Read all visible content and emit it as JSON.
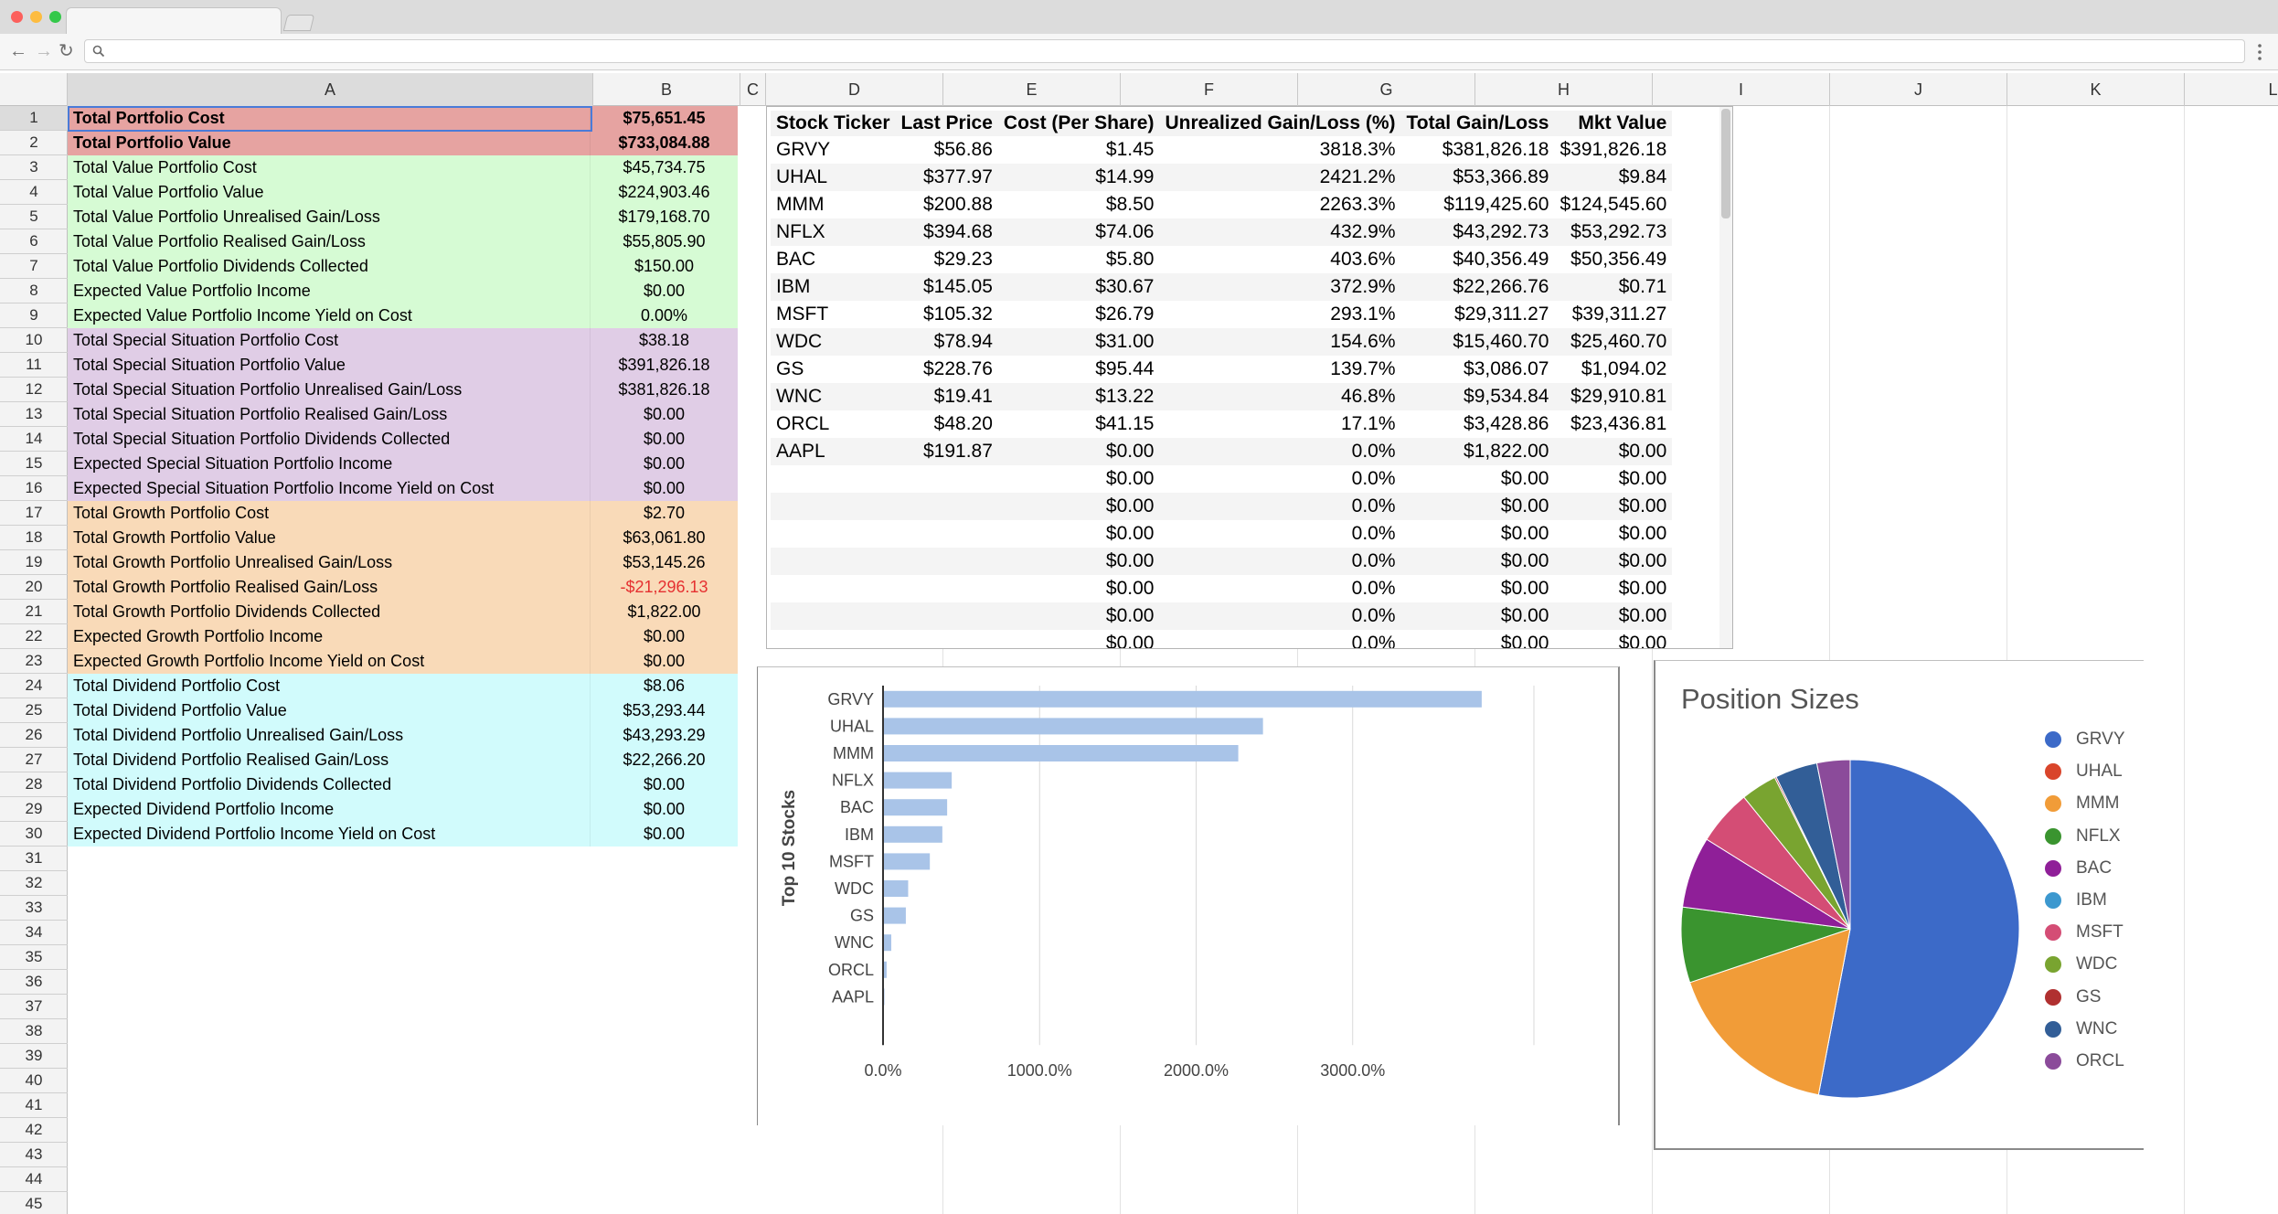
{
  "browser": {
    "nav": {
      "back": "←",
      "forward": "→",
      "reload": "↻"
    },
    "omnibox_value": "",
    "icons": [
      "search-icon",
      "kebab-menu-icon"
    ],
    "traffic_colors": [
      "#fc605c",
      "#fdbc40",
      "#34c84a"
    ]
  },
  "sheet": {
    "columns": [
      "A",
      "B",
      "C",
      "D",
      "E",
      "F",
      "G",
      "H",
      "I",
      "J",
      "K",
      "L"
    ],
    "row_numbers": [
      "1",
      "2",
      "3",
      "4",
      "5",
      "6",
      "7",
      "8",
      "9",
      "10",
      "11",
      "12",
      "13",
      "14",
      "15",
      "16",
      "17",
      "18",
      "19",
      "20",
      "21",
      "22",
      "23",
      "24",
      "25",
      "26",
      "27",
      "28",
      "29",
      "30",
      "31",
      "32",
      "33",
      "34",
      "35",
      "36",
      "37",
      "38",
      "39",
      "40",
      "41",
      "42",
      "43",
      "44",
      "45"
    ],
    "rows": [
      {
        "label": "Total Portfolio Cost",
        "value": "$75,651.45",
        "group": "red",
        "bold": true
      },
      {
        "label": "Total Portfolio Value",
        "value": "$733,084.88",
        "group": "red",
        "bold": true
      },
      {
        "label": "Total Value Portfolio Cost",
        "value": "$45,734.75",
        "group": "green"
      },
      {
        "label": "Total Value Portfolio Value",
        "value": "$224,903.46",
        "group": "green"
      },
      {
        "label": "Total Value Portfolio Unrealised Gain/Loss",
        "value": "$179,168.70",
        "group": "green"
      },
      {
        "label": "Total Value Portfolio Realised Gain/Loss",
        "value": "$55,805.90",
        "group": "green"
      },
      {
        "label": "Total Value Portfolio Dividends Collected",
        "value": "$150.00",
        "group": "green"
      },
      {
        "label": "Expected Value Portfolio Income",
        "value": "$0.00",
        "group": "green"
      },
      {
        "label": "Expected Value Portfolio Income Yield on Cost",
        "value": "0.00%",
        "group": "green"
      },
      {
        "label": "Total Special Situation Portfolio Cost",
        "value": "$38.18",
        "group": "purple"
      },
      {
        "label": "Total Special Situation Portfolio Value",
        "value": "$391,826.18",
        "group": "purple"
      },
      {
        "label": "Total Special Situation Portfolio Unrealised Gain/Loss",
        "value": "$381,826.18",
        "group": "purple"
      },
      {
        "label": "Total Special Situation Portfolio Realised Gain/Loss",
        "value": "$0.00",
        "group": "purple"
      },
      {
        "label": "Total Special Situation Portfolio Dividends Collected",
        "value": "$0.00",
        "group": "purple"
      },
      {
        "label": "Expected Special Situation Portfolio Income",
        "value": "$0.00",
        "group": "purple"
      },
      {
        "label": "Expected Special Situation Portfolio Income Yield on Cost",
        "value": "$0.00",
        "group": "purple"
      },
      {
        "label": "Total Growth Portfolio Cost",
        "value": "$2.70",
        "group": "orange"
      },
      {
        "label": "Total Growth Portfolio Value",
        "value": "$63,061.80",
        "group": "orange"
      },
      {
        "label": "Total Growth Portfolio Unrealised Gain/Loss",
        "value": "$53,145.26",
        "group": "orange"
      },
      {
        "label": "Total Growth Portfolio Realised Gain/Loss",
        "value": "-$21,296.13",
        "group": "orange",
        "negative": true
      },
      {
        "label": "Total Growth Portfolio Dividends Collected",
        "value": "$1,822.00",
        "group": "orange"
      },
      {
        "label": "Expected Growth Portfolio Income",
        "value": "$0.00",
        "group": "orange"
      },
      {
        "label": "Expected Growth Portfolio Income Yield on Cost",
        "value": "$0.00",
        "group": "orange"
      },
      {
        "label": "Total Dividend Portfolio Cost",
        "value": "$8.06",
        "group": "cyan"
      },
      {
        "label": "Total Dividend Portfolio Value",
        "value": "$53,293.44",
        "group": "cyan"
      },
      {
        "label": "Total Dividend Portfolio Unrealised Gain/Loss",
        "value": "$43,293.29",
        "group": "cyan"
      },
      {
        "label": "Total Dividend Portfolio Realised Gain/Loss",
        "value": "$22,266.20",
        "group": "cyan"
      },
      {
        "label": "Total Dividend Portfolio Dividends Collected",
        "value": "$0.00",
        "group": "cyan"
      },
      {
        "label": "Expected Dividend Portfolio Income",
        "value": "$0.00",
        "group": "cyan"
      },
      {
        "label": "Expected Dividend Portfolio Income Yield on Cost",
        "value": "$0.00",
        "group": "cyan"
      }
    ],
    "group_colors": {
      "red": "#e6a3a1",
      "green": "#d6fbd4",
      "purple": "#e0cde6",
      "orange": "#f9dab8",
      "cyan": "#d1fbfc"
    }
  },
  "stock_table": {
    "headers": [
      "Stock Ticker",
      "Last Price",
      "Cost (Per Share)",
      "Unrealized Gain/Loss (%)",
      "Total Gain/Loss",
      "Mkt Value"
    ],
    "rows": [
      [
        "GRVY",
        "$56.86",
        "$1.45",
        "3818.3%",
        "$381,826.18",
        "$391,826.18"
      ],
      [
        "UHAL",
        "$377.97",
        "$14.99",
        "2421.2%",
        "$53,366.89",
        "$9.84"
      ],
      [
        "MMM",
        "$200.88",
        "$8.50",
        "2263.3%",
        "$119,425.60",
        "$124,545.60"
      ],
      [
        "NFLX",
        "$394.68",
        "$74.06",
        "432.9%",
        "$43,292.73",
        "$53,292.73"
      ],
      [
        "BAC",
        "$29.23",
        "$5.80",
        "403.6%",
        "$40,356.49",
        "$50,356.49"
      ],
      [
        "IBM",
        "$145.05",
        "$30.67",
        "372.9%",
        "$22,266.76",
        "$0.71"
      ],
      [
        "MSFT",
        "$105.32",
        "$26.79",
        "293.1%",
        "$29,311.27",
        "$39,311.27"
      ],
      [
        "WDC",
        "$78.94",
        "$31.00",
        "154.6%",
        "$15,460.70",
        "$25,460.70"
      ],
      [
        "GS",
        "$228.76",
        "$95.44",
        "139.7%",
        "$3,086.07",
        "$1,094.02"
      ],
      [
        "WNC",
        "$19.41",
        "$13.22",
        "46.8%",
        "$9,534.84",
        "$29,910.81"
      ],
      [
        "ORCL",
        "$48.20",
        "$41.15",
        "17.1%",
        "$3,428.86",
        "$23,436.81"
      ],
      [
        "AAPL",
        "$191.87",
        "$0.00",
        "0.0%",
        "$1,822.00",
        "$0.00"
      ],
      [
        "",
        "",
        "$0.00",
        "0.0%",
        "$0.00",
        "$0.00"
      ],
      [
        "",
        "",
        "$0.00",
        "0.0%",
        "$0.00",
        "$0.00"
      ],
      [
        "",
        "",
        "$0.00",
        "0.0%",
        "$0.00",
        "$0.00"
      ],
      [
        "",
        "",
        "$0.00",
        "0.0%",
        "$0.00",
        "$0.00"
      ],
      [
        "",
        "",
        "$0.00",
        "0.0%",
        "$0.00",
        "$0.00"
      ],
      [
        "",
        "",
        "$0.00",
        "0.0%",
        "$0.00",
        "$0.00"
      ],
      [
        "",
        "",
        "$0.00",
        "0.0%",
        "$0.00",
        "$0.00"
      ]
    ]
  },
  "chart_data": [
    {
      "type": "bar",
      "orientation": "horizontal",
      "categories": [
        "GRVY",
        "UHAL",
        "MMM",
        "NFLX",
        "BAC",
        "IBM",
        "MSFT",
        "WDC",
        "GS",
        "WNC",
        "ORCL",
        "AAPL"
      ],
      "values": [
        3818.3,
        2421.2,
        2263.3,
        432.9,
        403.6,
        372.9,
        293.1,
        154.6,
        139.7,
        46.8,
        17.1,
        0.0
      ],
      "ylabel": "Top 10 Stocks",
      "xlim": [
        0,
        4000
      ],
      "xticks": [
        "0.0%",
        "1000.0%",
        "2000.0%",
        "3000.0%"
      ],
      "xtick_values": [
        0,
        1000,
        2000,
        3000
      ],
      "color": "#a9c4e8",
      "grid": true
    },
    {
      "type": "pie",
      "title": "Position Sizes",
      "labels": [
        "GRVY",
        "UHAL",
        "MMM",
        "NFLX",
        "BAC",
        "IBM",
        "MSFT",
        "WDC",
        "GS",
        "WNC",
        "ORCL"
      ],
      "values": [
        391826.18,
        9.84,
        124545.6,
        53292.73,
        50356.49,
        0.71,
        39311.27,
        25460.7,
        1094.02,
        29910.81,
        23436.81
      ],
      "colors": [
        "#3c6ac8",
        "#d9452b",
        "#f19c38",
        "#3a942f",
        "#8f1f98",
        "#3c98cf",
        "#d44d75",
        "#79a430",
        "#b03030",
        "#325e97",
        "#8b4b9a"
      ],
      "legend_position": "right"
    }
  ]
}
